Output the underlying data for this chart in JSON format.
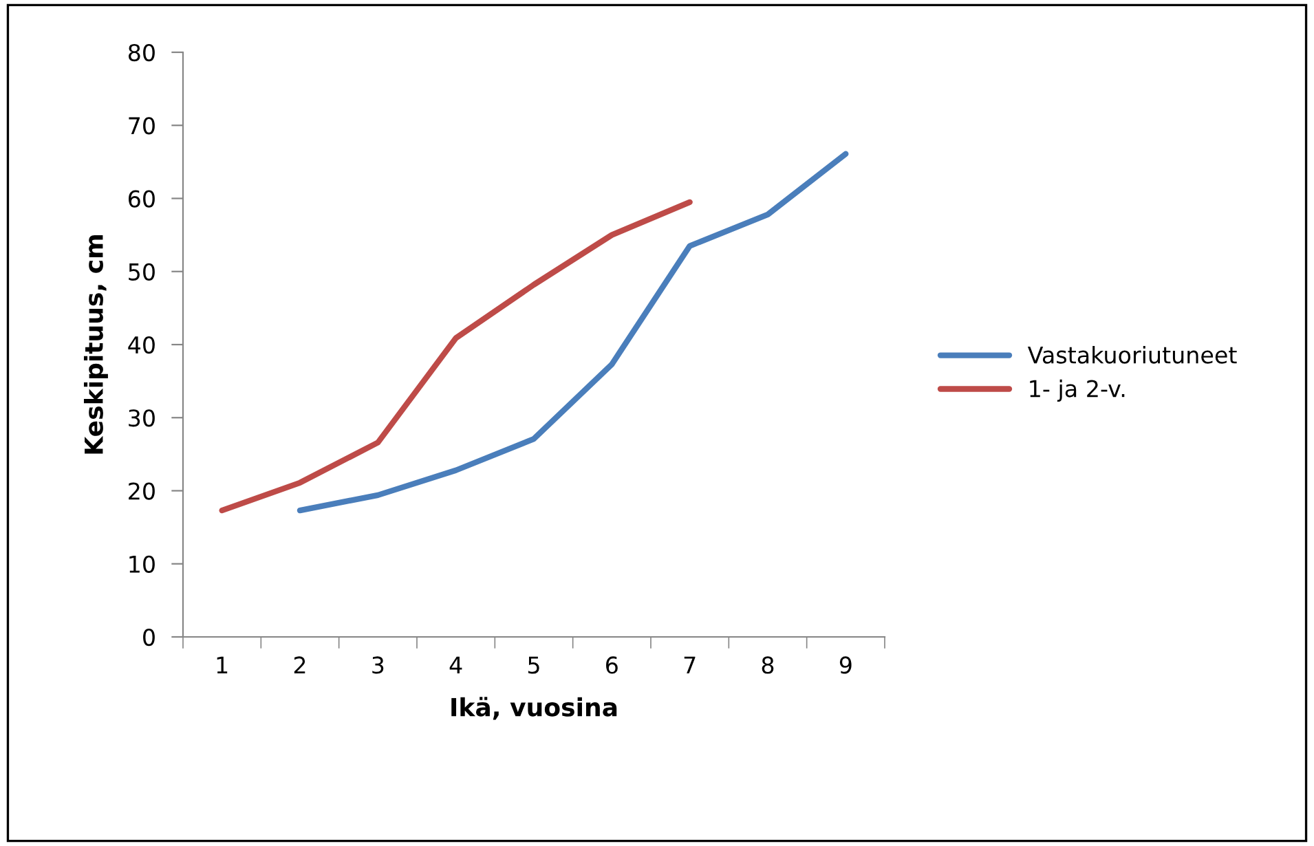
{
  "chart_data": {
    "type": "line",
    "xlabel": "Ikä, vuosina",
    "ylabel": "Keskipituus, cm",
    "categories": [
      "1",
      "2",
      "3",
      "4",
      "5",
      "6",
      "7",
      "8",
      "9"
    ],
    "series": [
      {
        "name": "Vastakuoriutuneet",
        "color": "#4a7ebb",
        "values": [
          null,
          17.3,
          19.4,
          22.8,
          27.1,
          37.3,
          53.5,
          57.8,
          66.1
        ]
      },
      {
        "name": "1- ja 2-v.",
        "color": "#be4b48",
        "values": [
          17.3,
          21.1,
          26.6,
          40.9,
          48.2,
          55.0,
          59.5,
          null,
          null
        ]
      }
    ],
    "ylim": [
      0,
      80
    ],
    "yticks": [
      0,
      10,
      20,
      30,
      40,
      50,
      60,
      70,
      80
    ],
    "grid": false,
    "legend": "right",
    "marker": "none",
    "line_style": "solid"
  }
}
